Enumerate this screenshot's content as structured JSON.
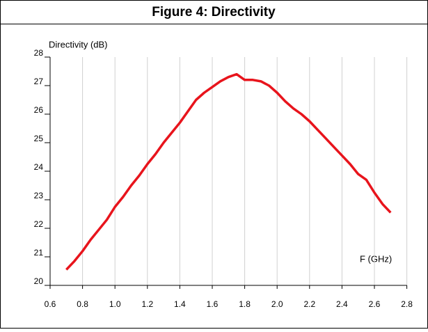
{
  "chart_data": {
    "type": "line",
    "title": "Figure 4: Directivity",
    "y_label": "Directivity (dB)",
    "x_label": "F (GHz)",
    "x": [
      0.7,
      0.75,
      0.8,
      0.85,
      0.9,
      0.95,
      1.0,
      1.05,
      1.1,
      1.15,
      1.2,
      1.25,
      1.3,
      1.35,
      1.4,
      1.45,
      1.5,
      1.55,
      1.6,
      1.65,
      1.7,
      1.75,
      1.8,
      1.85,
      1.9,
      1.95,
      2.0,
      2.05,
      2.1,
      2.15,
      2.2,
      2.25,
      2.3,
      2.35,
      2.4,
      2.45,
      2.5,
      2.55,
      2.6,
      2.65,
      2.7
    ],
    "series": [
      {
        "color": "#e8141c",
        "values": [
          20.55,
          20.85,
          21.2,
          21.6,
          21.95,
          22.3,
          22.75,
          23.1,
          23.5,
          23.85,
          24.25,
          24.6,
          25.0,
          25.35,
          25.7,
          26.1,
          26.5,
          26.75,
          26.95,
          27.15,
          27.3,
          27.4,
          27.2,
          27.2,
          27.15,
          27.0,
          26.75,
          26.45,
          26.2,
          26.0,
          25.75,
          25.45,
          25.15,
          24.85,
          24.55,
          24.25,
          23.9,
          23.7,
          23.25,
          22.85,
          22.55
        ]
      }
    ],
    "xlim": [
      0.6,
      2.8
    ],
    "xticks": [
      {
        "value": 0.6,
        "label": "0.6"
      },
      {
        "value": 0.8,
        "label": "0.8"
      },
      {
        "value": 1.0,
        "label": "1.0"
      },
      {
        "value": 1.2,
        "label": "1.2"
      },
      {
        "value": 1.4,
        "label": "1.4"
      },
      {
        "value": 1.6,
        "label": "1.6"
      },
      {
        "value": 1.8,
        "label": "1.8"
      },
      {
        "value": 2.0,
        "label": "2.0"
      },
      {
        "value": 2.2,
        "label": "2.2"
      },
      {
        "value": 2.4,
        "label": "2.4"
      },
      {
        "value": 2.6,
        "label": "2.6"
      },
      {
        "value": 2.8,
        "label": "2.8"
      }
    ],
    "ylim": [
      20,
      28
    ],
    "yticks": [
      20,
      21,
      22,
      23,
      24,
      25,
      26,
      27,
      28
    ],
    "grid": "x"
  }
}
